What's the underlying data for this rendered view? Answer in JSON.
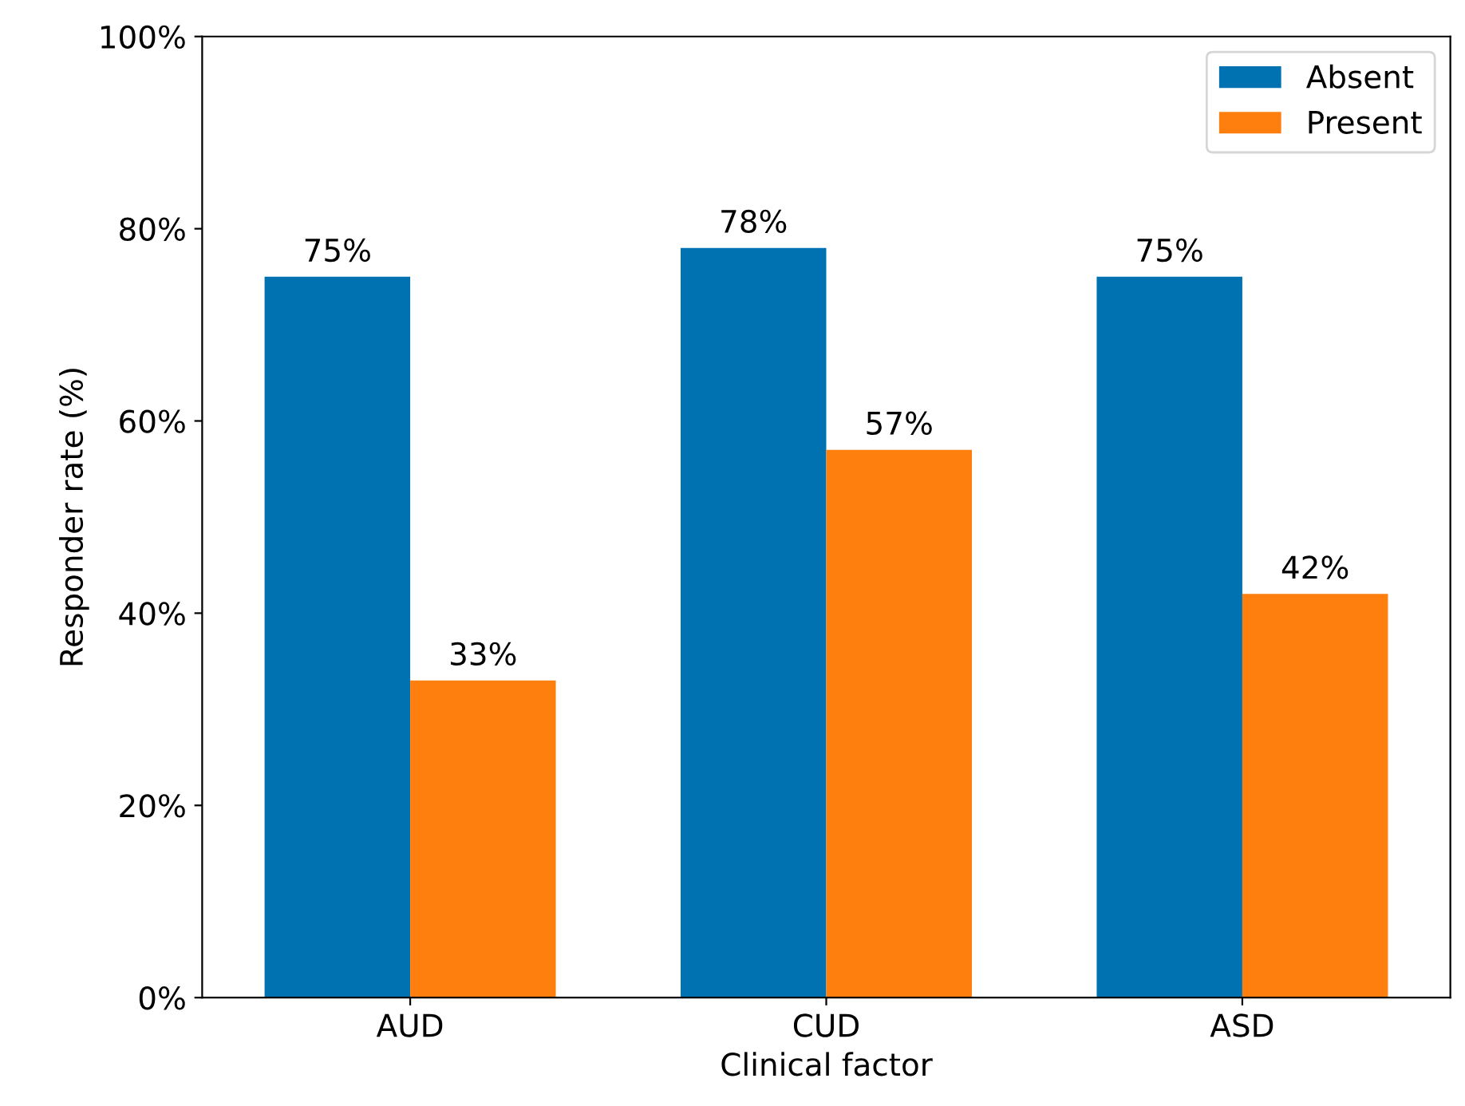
{
  "chart_data": {
    "type": "bar",
    "xlabel": "Clinical factor",
    "ylabel": "Responder rate (%)",
    "categories": [
      "AUD",
      "CUD",
      "ASD"
    ],
    "series": [
      {
        "name": "Absent",
        "color": "#0072b2",
        "values": [
          75,
          78,
          75
        ],
        "value_labels": [
          "75%",
          "78%",
          "75%"
        ]
      },
      {
        "name": "Present",
        "color": "#ff7f0e",
        "values": [
          33,
          57,
          42
        ],
        "value_labels": [
          "33%",
          "57%",
          "42%"
        ]
      }
    ],
    "ylim": [
      0,
      100
    ],
    "yticks": [
      {
        "value": 0,
        "label": "0%"
      },
      {
        "value": 20,
        "label": "20%"
      },
      {
        "value": 40,
        "label": "40%"
      },
      {
        "value": 60,
        "label": "60%"
      },
      {
        "value": 80,
        "label": "80%"
      },
      {
        "value": 100,
        "label": "100%"
      }
    ],
    "grid": false,
    "legend": "top right"
  }
}
